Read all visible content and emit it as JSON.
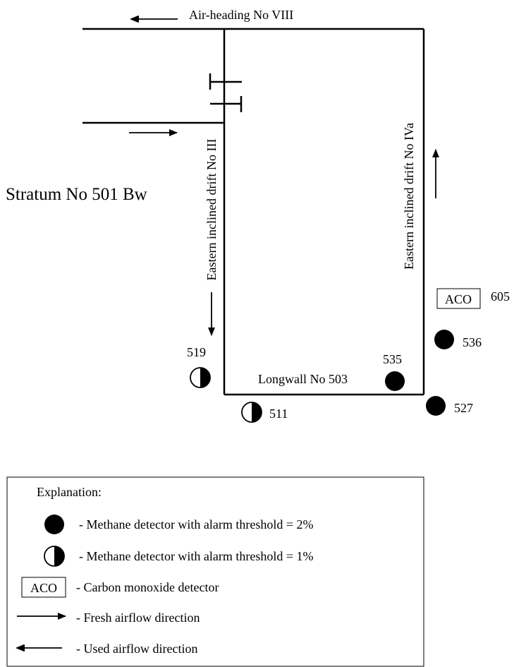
{
  "labels": {
    "air_heading": "Air-heading No VIII",
    "stratum": "Stratum No 501 Bw",
    "drift_iii": "Eastern inclined drift No III",
    "drift_iva": "Eastern inclined drift No IVa",
    "longwall": "Longwall No 503"
  },
  "sensors": {
    "s519": "519",
    "s511": "511",
    "s535": "535",
    "s536": "536",
    "s527": "527",
    "aco_box": "ACO",
    "aco_number": "605"
  },
  "legend": {
    "title": "Explanation:",
    "methane_2": "- Methane detector with alarm threshold = 2%",
    "methane_1": "- Methane detector with alarm threshold = 1%",
    "aco_box": "ACO",
    "co_detector": "- Carbon monoxide detector",
    "fresh_air": "- Fresh airflow direction",
    "used_air": "- Used airflow direction"
  }
}
